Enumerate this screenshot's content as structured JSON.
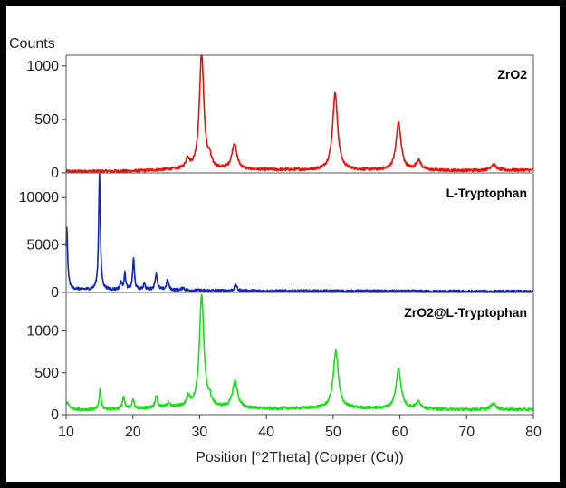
{
  "chart_data": {
    "type": "line",
    "title": "",
    "ylabel": "Counts",
    "xlabel": "Position [°2Theta] (Copper (Cu))",
    "xlim": [
      10,
      80
    ],
    "xticks": [
      10,
      20,
      30,
      40,
      50,
      60,
      70,
      80
    ],
    "grid": false,
    "panels": [
      {
        "label": "ZrO2",
        "color": "#e8120c",
        "ylim": [
          0,
          1100
        ],
        "yticks": [
          0,
          500,
          1000
        ],
        "baseline": [
          [
            10,
            14
          ],
          [
            20,
            16
          ],
          [
            26,
            30
          ],
          [
            40,
            28
          ],
          [
            50,
            26
          ],
          [
            70,
            22
          ],
          [
            80,
            26
          ]
        ],
        "peaks": [
          {
            "x": 28.2,
            "h": 95,
            "w": 0.3
          },
          {
            "x": 30.3,
            "h": 1090,
            "w": 0.4
          },
          {
            "x": 31.5,
            "h": 80,
            "w": 0.3
          },
          {
            "x": 35.2,
            "h": 240,
            "w": 0.45
          },
          {
            "x": 50.3,
            "h": 720,
            "w": 0.45
          },
          {
            "x": 59.8,
            "h": 440,
            "w": 0.45
          },
          {
            "x": 62.8,
            "h": 90,
            "w": 0.45
          },
          {
            "x": 74.0,
            "h": 55,
            "w": 0.5
          }
        ]
      },
      {
        "label": "L-Tryptophan",
        "color": "#1027b8",
        "ylim": [
          0,
          12500
        ],
        "yticks": [
          0,
          5000,
          10000
        ],
        "baseline": [
          [
            10,
            600
          ],
          [
            11,
            350
          ],
          [
            15,
            250
          ],
          [
            20,
            300
          ],
          [
            25,
            260
          ],
          [
            30,
            200
          ],
          [
            40,
            150
          ],
          [
            80,
            90
          ]
        ],
        "peaks": [
          {
            "x": 10.1,
            "h": 6200,
            "w": 0.15
          },
          {
            "x": 15.0,
            "h": 12300,
            "w": 0.15
          },
          {
            "x": 18.2,
            "h": 800,
            "w": 0.15
          },
          {
            "x": 18.8,
            "h": 1700,
            "w": 0.15
          },
          {
            "x": 20.1,
            "h": 3300,
            "w": 0.15
          },
          {
            "x": 21.7,
            "h": 700,
            "w": 0.15
          },
          {
            "x": 23.5,
            "h": 1700,
            "w": 0.2
          },
          {
            "x": 25.2,
            "h": 1000,
            "w": 0.2
          },
          {
            "x": 27.5,
            "h": 300,
            "w": 0.2
          },
          {
            "x": 35.4,
            "h": 650,
            "w": 0.2
          }
        ]
      },
      {
        "label": "ZrO2@L-Tryptophan",
        "color": "#16e016",
        "ylim": [
          0,
          1450
        ],
        "yticks": [
          0,
          500,
          1000
        ],
        "baseline": [
          [
            10,
            90
          ],
          [
            12,
            60
          ],
          [
            20,
            70
          ],
          [
            26,
            90
          ],
          [
            40,
            70
          ],
          [
            50,
            80
          ],
          [
            70,
            60
          ],
          [
            80,
            60
          ]
        ],
        "peaks": [
          {
            "x": 10.2,
            "h": 60,
            "w": 0.2
          },
          {
            "x": 15.1,
            "h": 260,
            "w": 0.15
          },
          {
            "x": 18.6,
            "h": 140,
            "w": 0.2
          },
          {
            "x": 20.0,
            "h": 110,
            "w": 0.2
          },
          {
            "x": 23.5,
            "h": 150,
            "w": 0.2
          },
          {
            "x": 25.3,
            "h": 60,
            "w": 0.2
          },
          {
            "x": 28.3,
            "h": 110,
            "w": 0.3
          },
          {
            "x": 30.3,
            "h": 1340,
            "w": 0.4
          },
          {
            "x": 31.5,
            "h": 80,
            "w": 0.3
          },
          {
            "x": 35.3,
            "h": 320,
            "w": 0.45
          },
          {
            "x": 50.4,
            "h": 680,
            "w": 0.45
          },
          {
            "x": 59.8,
            "h": 470,
            "w": 0.45
          },
          {
            "x": 62.8,
            "h": 80,
            "w": 0.45
          },
          {
            "x": 74.0,
            "h": 70,
            "w": 0.5
          }
        ]
      }
    ]
  }
}
